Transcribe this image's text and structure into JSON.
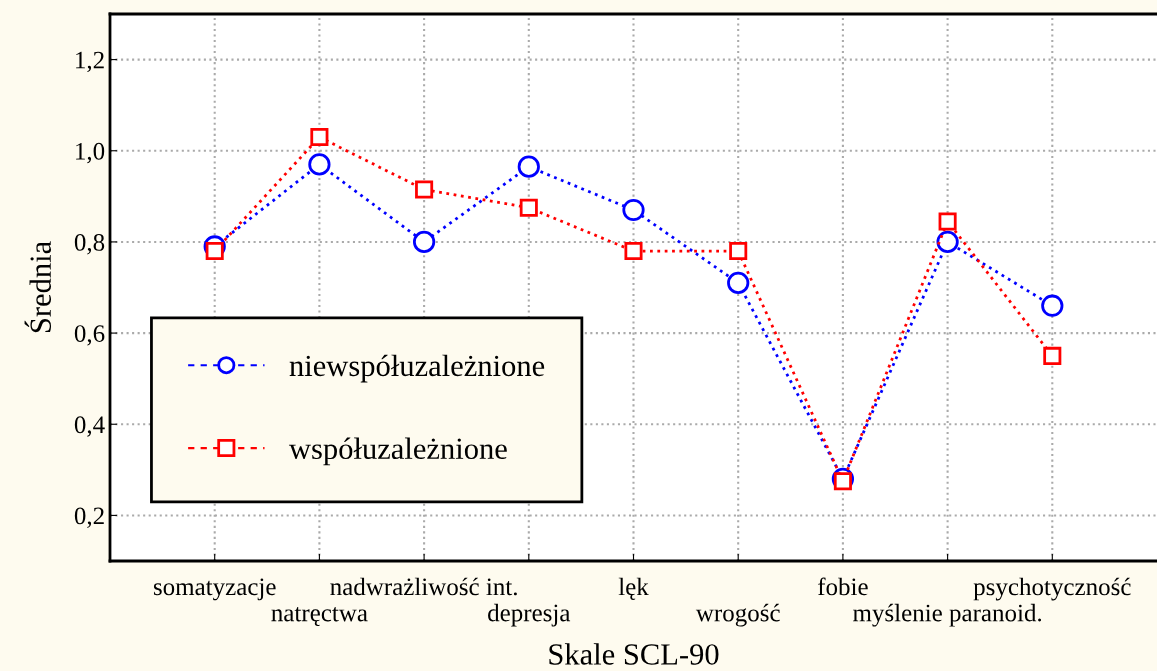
{
  "chart_data": {
    "type": "line",
    "xlabel": "Skale SCL-90",
    "ylabel": "Średnia",
    "categories": [
      "somatyzacje",
      "natręctwa",
      "nadwrażliwość int.",
      "depresja",
      "lęk",
      "wrogość",
      "fobie",
      "myślenie paranoid.",
      "psychotyczność"
    ],
    "series": [
      {
        "name": "niewspółuzależnione",
        "color": "#0000ff",
        "marker": "circle",
        "values": [
          0.79,
          0.97,
          0.8,
          0.965,
          0.87,
          0.71,
          0.28,
          0.8,
          0.66
        ]
      },
      {
        "name": "współuzależnione",
        "color": "#ff0000",
        "marker": "square",
        "values": [
          0.78,
          1.03,
          0.915,
          0.875,
          0.78,
          0.78,
          0.275,
          0.845,
          0.55
        ]
      }
    ],
    "ylim": [
      0.1,
      1.3
    ],
    "yticks": [
      {
        "value": 0.2,
        "label": "0,2"
      },
      {
        "value": 0.4,
        "label": "0,4"
      },
      {
        "value": 0.6,
        "label": "0,6"
      },
      {
        "value": 0.8,
        "label": "0,8"
      },
      {
        "value": 1.0,
        "label": "1,0"
      },
      {
        "value": 1.2,
        "label": "1,2"
      }
    ],
    "grid": true,
    "legend": "bottom left",
    "line_style": "dotted"
  }
}
